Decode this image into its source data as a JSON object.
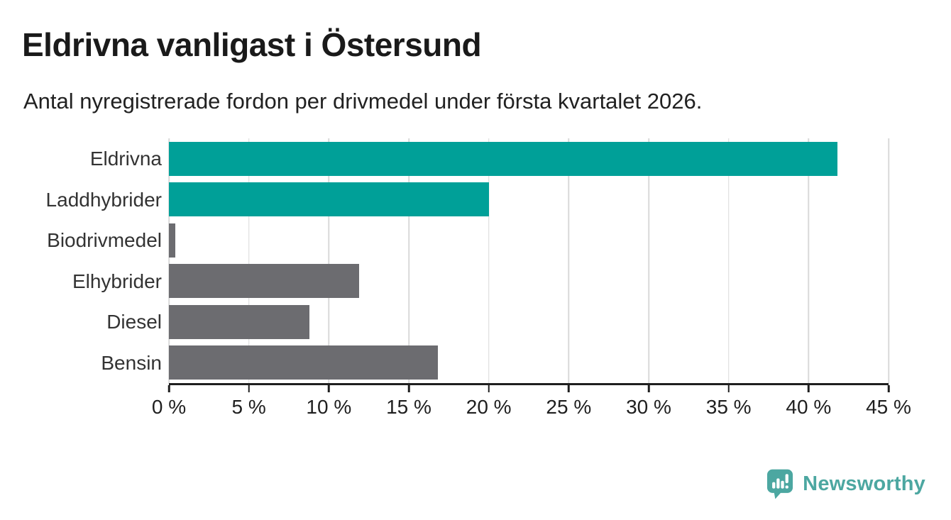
{
  "header": {
    "title": "Eldrivna vanligast i Östersund",
    "subtitle": "Antal nyregistrerade fordon per drivmedel under första kvartalet 2026."
  },
  "chart_data": {
    "type": "bar",
    "orientation": "horizontal",
    "title": "Eldrivna vanligast i Östersund",
    "subtitle": "Antal nyregistrerade fordon per drivmedel under första kvartalet 2026.",
    "categories": [
      "Eldrivna",
      "Laddhybrider",
      "Biodrivmedel",
      "Elhybrider",
      "Diesel",
      "Bensin"
    ],
    "values": [
      41.8,
      20.0,
      0.4,
      11.9,
      8.8,
      16.8
    ],
    "unit": "%",
    "xlim": [
      0,
      45
    ],
    "x_ticks": [
      0,
      5,
      10,
      15,
      20,
      25,
      30,
      35,
      40,
      45
    ],
    "x_tick_labels": [
      "0 %",
      "5 %",
      "10 %",
      "15 %",
      "20 %",
      "25 %",
      "30 %",
      "35 %",
      "40 %",
      "45 %"
    ],
    "bar_colors": [
      "#00a098",
      "#00a098",
      "#6c6c70",
      "#6c6c70",
      "#6c6c70",
      "#6c6c70"
    ],
    "grid": true,
    "legend": false
  },
  "colors": {
    "highlight_teal": "#00a098",
    "default_gray": "#6c6c70",
    "gridline": "#d9d9d9",
    "axis": "#1f1f1f",
    "brand_teal": "#4ca7a1"
  },
  "footer": {
    "brand": "Newsworthy"
  }
}
